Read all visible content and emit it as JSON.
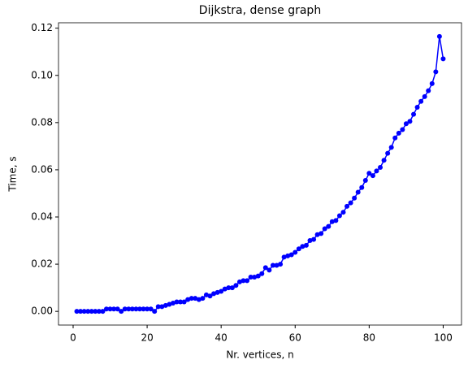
{
  "chart_data": {
    "type": "line",
    "title": "Dijkstra, dense graph",
    "xlabel": "Nr. vertices, n",
    "ylabel": "Time, s",
    "x": [
      1,
      2,
      3,
      4,
      5,
      6,
      7,
      8,
      9,
      10,
      11,
      12,
      13,
      14,
      15,
      16,
      17,
      18,
      19,
      20,
      21,
      22,
      23,
      24,
      25,
      26,
      27,
      28,
      29,
      30,
      31,
      32,
      33,
      34,
      35,
      36,
      37,
      38,
      39,
      40,
      41,
      42,
      43,
      44,
      45,
      46,
      47,
      48,
      49,
      50,
      51,
      52,
      53,
      54,
      55,
      56,
      57,
      58,
      59,
      60,
      61,
      62,
      63,
      64,
      65,
      66,
      67,
      68,
      69,
      70,
      71,
      72,
      73,
      74,
      75,
      76,
      77,
      78,
      79,
      80,
      81,
      82,
      83,
      84,
      85,
      86,
      87,
      88,
      89,
      90,
      91,
      92,
      93,
      94,
      95,
      96,
      97,
      98,
      99,
      100
    ],
    "series": [
      {
        "color": "#0000ff",
        "values": [
          0,
          0,
          0,
          0,
          0,
          0,
          0,
          0,
          0.001,
          0.001,
          0.001,
          0.001,
          0,
          0.001,
          0.001,
          0.001,
          0.001,
          0.001,
          0.001,
          0.001,
          0.001,
          0,
          0.002,
          0.002,
          0.0025,
          0.003,
          0.0035,
          0.004,
          0.004,
          0.004,
          0.005,
          0.0055,
          0.0055,
          0.005,
          0.0055,
          0.007,
          0.0065,
          0.0075,
          0.008,
          0.0085,
          0.0095,
          0.01,
          0.01,
          0.011,
          0.0125,
          0.013,
          0.013,
          0.0145,
          0.0145,
          0.015,
          0.016,
          0.0185,
          0.0175,
          0.0195,
          0.0195,
          0.02,
          0.023,
          0.0235,
          0.024,
          0.025,
          0.0265,
          0.0275,
          0.028,
          0.03,
          0.0305,
          0.0325,
          0.033,
          0.035,
          0.036,
          0.038,
          0.0385,
          0.0405,
          0.042,
          0.0445,
          0.046,
          0.048,
          0.0505,
          0.0525,
          0.0555,
          0.0585,
          0.0575,
          0.0595,
          0.061,
          0.064,
          0.067,
          0.0695,
          0.0735,
          0.0755,
          0.077,
          0.0795,
          0.0805,
          0.0835,
          0.0865,
          0.089,
          0.091,
          0.0935,
          0.0965,
          0.1015,
          0.1165,
          0.107
        ]
      }
    ],
    "xlim": [
      -3.95,
      104.95
    ],
    "ylim": [
      -0.0058,
      0.1223
    ],
    "xticks": [
      0,
      20,
      40,
      60,
      80,
      100
    ],
    "yticks": [
      {
        "value": 0,
        "label": "0.00"
      },
      {
        "value": 0.02,
        "label": "0.02"
      },
      {
        "value": 0.04,
        "label": "0.04"
      },
      {
        "value": 0.06,
        "label": "0.06"
      },
      {
        "value": 0.08,
        "label": "0.08"
      },
      {
        "value": 0.1,
        "label": "0.10"
      },
      {
        "value": 0.12,
        "label": "0.12"
      }
    ]
  }
}
